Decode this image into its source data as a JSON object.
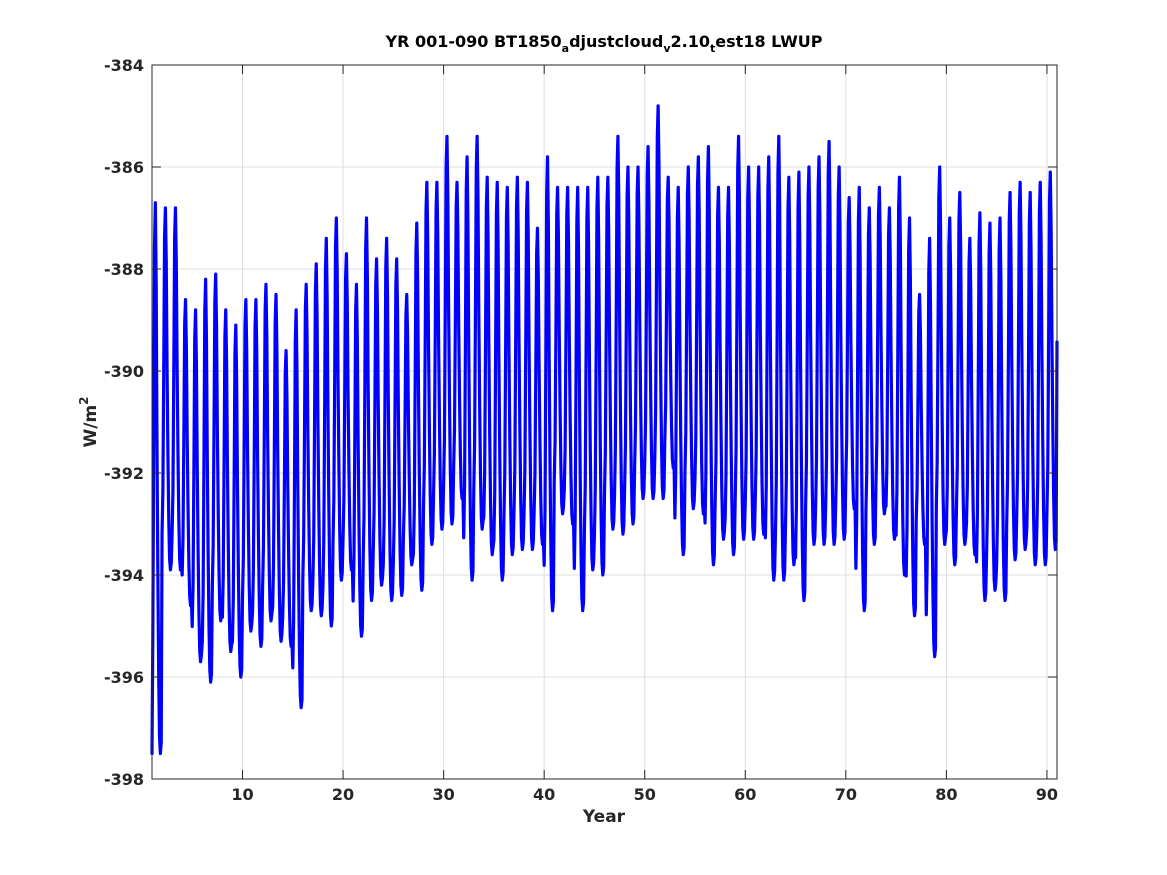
{
  "chart_data": {
    "type": "line",
    "title": {
      "parts": [
        {
          "text": "YR 001-090 BT1850",
          "sub": false
        },
        {
          "text": "a",
          "sub": true
        },
        {
          "text": "djustcloud",
          "sub": false
        },
        {
          "text": "v",
          "sub": true
        },
        {
          "text": "2.10",
          "sub": false
        },
        {
          "text": "t",
          "sub": true
        },
        {
          "text": "est18 LWUP",
          "sub": false
        }
      ]
    },
    "xlabel": "Year",
    "ylabel": {
      "base": "W/m",
      "sup": "2"
    },
    "xlim": [
      1,
      91
    ],
    "ylim": [
      -398,
      -384
    ],
    "xticks": [
      10,
      20,
      30,
      40,
      50,
      60,
      70,
      80,
      90
    ],
    "yticks": [
      -398,
      -396,
      -394,
      -392,
      -390,
      -388,
      -386,
      -384
    ],
    "xtick_labels": [
      "10",
      "20",
      "30",
      "40",
      "50",
      "60",
      "70",
      "80",
      "90"
    ],
    "ytick_labels": [
      "-398",
      "-396",
      "-394",
      "-392",
      "-390",
      "-388",
      "-386",
      "-384"
    ],
    "grid": true,
    "series": [
      {
        "color": "#0000ff",
        "cycle": "monthly seasonal cycle, one peak and one trough per year",
        "years": [
          1,
          2,
          3,
          4,
          5,
          6,
          7,
          8,
          9,
          10,
          11,
          12,
          13,
          14,
          15,
          16,
          17,
          18,
          19,
          20,
          21,
          22,
          23,
          24,
          25,
          26,
          27,
          28,
          29,
          30,
          31,
          32,
          33,
          34,
          35,
          36,
          37,
          38,
          39,
          40,
          41,
          42,
          43,
          44,
          45,
          46,
          47,
          48,
          49,
          50,
          51,
          52,
          53,
          54,
          55,
          56,
          57,
          58,
          59,
          60,
          61,
          62,
          63,
          64,
          65,
          66,
          67,
          68,
          69,
          70,
          71,
          72,
          73,
          74,
          75,
          76,
          77,
          78,
          79,
          80,
          81,
          82,
          83,
          84,
          85,
          86,
          87,
          88,
          89,
          90
        ],
        "annual_max": [
          -386.7,
          -386.8,
          -386.8,
          -388.6,
          -388.8,
          -388.2,
          -388.1,
          -388.8,
          -389.1,
          -388.6,
          -388.6,
          -388.3,
          -388.5,
          -389.6,
          -388.8,
          -388.3,
          -387.9,
          -387.4,
          -387.0,
          -387.7,
          -388.3,
          -387.0,
          -387.8,
          -387.4,
          -387.8,
          -388.5,
          -387.1,
          -386.3,
          -386.3,
          -385.4,
          -386.3,
          -385.8,
          -385.4,
          -386.2,
          -386.3,
          -386.4,
          -386.2,
          -386.3,
          -387.2,
          -385.8,
          -386.4,
          -386.4,
          -386.4,
          -386.4,
          -386.2,
          -386.2,
          -385.4,
          -386.0,
          -386.0,
          -385.6,
          -384.8,
          -386.2,
          -386.4,
          -386.0,
          -385.8,
          -385.6,
          -386.4,
          -386.4,
          -385.4,
          -386.0,
          -386.0,
          -385.8,
          -385.4,
          -386.2,
          -386.1,
          -386.0,
          -385.8,
          -385.5,
          -386.0,
          -386.6,
          -386.4,
          -386.8,
          -386.4,
          -386.8,
          -386.2,
          -387.0,
          -388.5,
          -387.4,
          -386.0,
          -387.0,
          -386.5,
          -387.4,
          -386.9,
          -387.1,
          -387.0,
          -386.5,
          -386.3,
          -386.5,
          -386.3,
          -386.1
        ],
        "annual_min": [
          -397.5,
          -393.9,
          -393.9,
          -394.6,
          -395.7,
          -396.1,
          -394.9,
          -395.5,
          -396.0,
          -395.1,
          -395.4,
          -394.9,
          -395.3,
          -395.4,
          -396.6,
          -394.7,
          -394.8,
          -395.0,
          -394.1,
          -393.9,
          -395.2,
          -394.5,
          -394.2,
          -394.5,
          -394.4,
          -393.8,
          -394.3,
          -393.4,
          -393.1,
          -393.0,
          -392.5,
          -394.1,
          -393.1,
          -393.6,
          -394.1,
          -393.6,
          -393.5,
          -393.5,
          -393.4,
          -394.7,
          -392.8,
          -393.0,
          -394.7,
          -393.9,
          -394.0,
          -393.1,
          -393.2,
          -393.0,
          -392.5,
          -392.5,
          -392.5,
          -391.9,
          -393.6,
          -392.7,
          -392.8,
          -393.8,
          -393.3,
          -393.6,
          -393.3,
          -393.3,
          -393.2,
          -394.1,
          -394.1,
          -393.8,
          -394.5,
          -393.4,
          -393.4,
          -393.4,
          -393.3,
          -392.7,
          -394.7,
          -393.4,
          -392.8,
          -393.3,
          -394.0,
          -394.8,
          -393.4,
          -395.6,
          -393.4,
          -393.8,
          -393.4,
          -393.6,
          -394.5,
          -394.3,
          -394.5,
          -393.7,
          -393.5,
          -393.8,
          -393.8,
          -393.5
        ]
      }
    ]
  }
}
